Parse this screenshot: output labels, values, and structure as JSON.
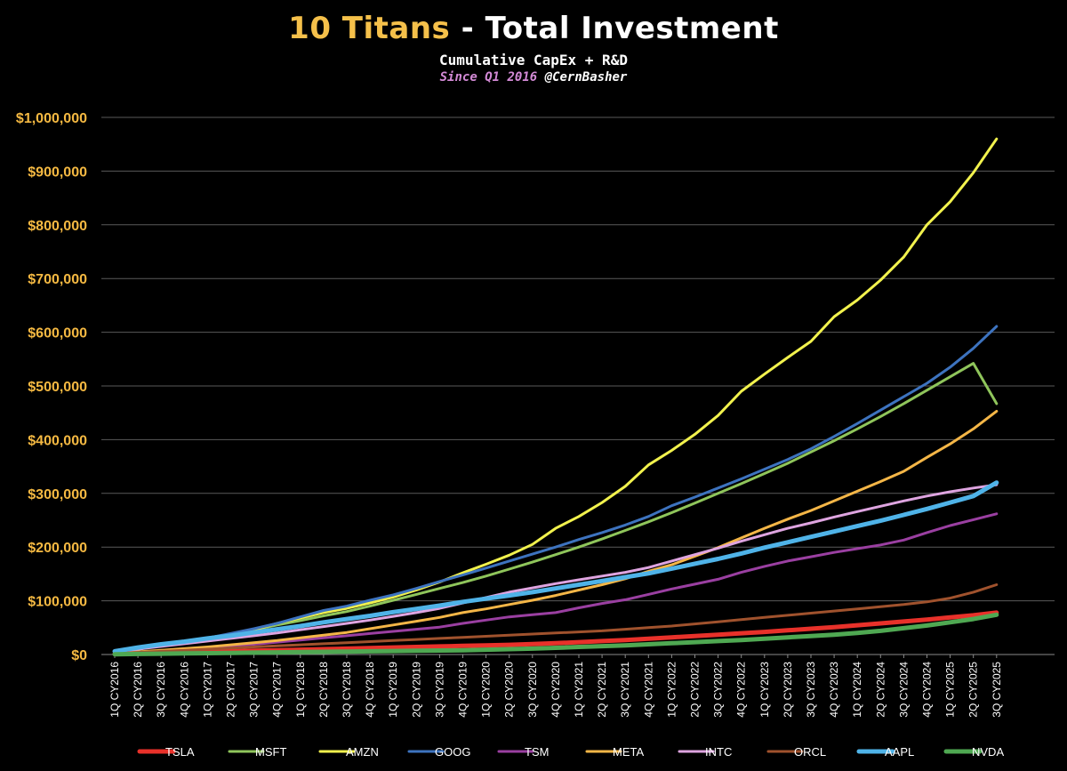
{
  "header": {
    "title_accent": "10 Titans",
    "title_rest": " - Total Investment",
    "subtitle": "Cumulative CapEx + R&D",
    "credit_prefix": "Since Q1 2016 ",
    "credit_handle": "@CernBasher"
  },
  "colors": {
    "background": "#000000",
    "grid": "#5a5a5a",
    "ytick": "#f5b942",
    "title_accent": "#f5c04a",
    "credit": "#d38ad6"
  },
  "chart_data": {
    "type": "line",
    "title": "10 Titans - Total Investment",
    "subtitle": "Cumulative CapEx + R&D",
    "xlabel": "",
    "ylabel": "",
    "ylim": [
      0,
      1000000
    ],
    "grid": true,
    "legend_position": "bottom",
    "y_ticks": [
      "$0",
      "$100,000",
      "$200,000",
      "$300,000",
      "$400,000",
      "$500,000",
      "$600,000",
      "$700,000",
      "$800,000",
      "$900,000",
      "$1,000,000"
    ],
    "categories": [
      "1Q CY2016",
      "2Q CY2016",
      "3Q CY2016",
      "4Q CY2016",
      "1Q CY2017",
      "2Q CY2017",
      "3Q CY2017",
      "4Q CY2017",
      "1Q CY2018",
      "2Q CY2018",
      "3Q CY2018",
      "4Q CY2018",
      "1Q CY2019",
      "2Q CY2019",
      "3Q CY2019",
      "4Q CY2019",
      "1Q CY2020",
      "2Q CY2020",
      "3Q CY2020",
      "4Q CY2020",
      "1Q CY2021",
      "2Q CY2021",
      "3Q CY2021",
      "4Q CY2021",
      "1Q CY2022",
      "2Q CY2022",
      "3Q CY2022",
      "4Q CY2022",
      "1Q CY2023",
      "2Q CY2023",
      "3Q CY2023",
      "4Q CY2023",
      "1Q CY2024",
      "2Q CY2024",
      "3Q CY2024",
      "4Q CY2024",
      "1Q CY2025",
      "2Q CY2025",
      "3Q CY2025"
    ],
    "series": [
      {
        "name": "TSLA",
        "color": "#e8312a",
        "width": 5,
        "values": [
          1000,
          2000,
          3000,
          4000,
          5000,
          6000,
          7000,
          8000,
          9000,
          10000,
          11000,
          12000,
          13000,
          14000,
          15000,
          16000,
          17000,
          18000,
          19500,
          21000,
          23000,
          25000,
          27000,
          29500,
          32000,
          34500,
          37000,
          39500,
          42000,
          45000,
          48000,
          51000,
          54500,
          58000,
          61500,
          65000,
          69000,
          73000,
          78000
        ]
      },
      {
        "name": "MSFT",
        "color": "#8fc55b",
        "width": 3,
        "values": [
          5000,
          10000,
          17000,
          24000,
          31000,
          38000,
          46000,
          55000,
          63000,
          72000,
          80000,
          90000,
          101000,
          112000,
          123000,
          134000,
          146000,
          159000,
          172000,
          186000,
          200000,
          215000,
          231000,
          247000,
          264000,
          282000,
          300000,
          318000,
          337000,
          356000,
          377000,
          398000,
          420000,
          443000,
          467000,
          492000,
          517000,
          542000,
          467000
        ]
      },
      {
        "name": "AMZN",
        "color": "#f2f24d",
        "width": 3,
        "values": [
          5000,
          10000,
          17000,
          24000,
          31000,
          38000,
          46000,
          58000,
          68000,
          78000,
          86000,
          96000,
          107000,
          120000,
          135000,
          152000,
          168000,
          185000,
          205000,
          235000,
          257000,
          283000,
          313000,
          353000,
          380000,
          410000,
          445000,
          490000,
          522000,
          553000,
          583000,
          629000,
          660000,
          697000,
          740000,
          800000,
          843000,
          897000,
          960000
        ]
      },
      {
        "name": "GOOG",
        "color": "#3d73bf",
        "width": 3,
        "values": [
          4000,
          10000,
          17000,
          24000,
          31000,
          39000,
          48000,
          58000,
          70000,
          82000,
          90000,
          101000,
          111000,
          123000,
          136000,
          148000,
          161000,
          174000,
          187000,
          200000,
          214000,
          227000,
          241000,
          257000,
          277000,
          293000,
          310000,
          327000,
          345000,
          363000,
          383000,
          406000,
          430000,
          455000,
          480000,
          505000,
          535000,
          570000,
          611000
        ]
      },
      {
        "name": "TSM",
        "color": "#9a3fa1",
        "width": 3,
        "values": [
          2000,
          4000,
          7000,
          10000,
          13000,
          16000,
          19000,
          23000,
          27000,
          31000,
          35000,
          39000,
          43000,
          47000,
          51000,
          58000,
          64000,
          70000,
          74000,
          78000,
          87000,
          95000,
          102000,
          112000,
          122000,
          131000,
          140000,
          153000,
          164000,
          174000,
          182000,
          190000,
          197000,
          204000,
          213000,
          227000,
          240000,
          251000,
          262000
        ]
      },
      {
        "name": "META",
        "color": "#f4b647",
        "width": 3,
        "values": [
          2000,
          5000,
          8000,
          11000,
          14000,
          18000,
          22000,
          26000,
          31000,
          36000,
          41000,
          48000,
          55000,
          62000,
          69000,
          78000,
          85000,
          93000,
          101000,
          110000,
          120000,
          130000,
          141000,
          155000,
          167000,
          183000,
          199000,
          217000,
          235000,
          252000,
          268000,
          286000,
          304000,
          322000,
          341000,
          367000,
          392000,
          420000,
          453000
        ]
      },
      {
        "name": "INTC",
        "color": "#dea4e0",
        "width": 3,
        "values": [
          5000,
          10000,
          15000,
          20000,
          25000,
          30000,
          35000,
          40000,
          46000,
          52000,
          58000,
          64000,
          71000,
          78000,
          86000,
          96000,
          106000,
          116000,
          124000,
          132000,
          139000,
          146000,
          153000,
          162000,
          174000,
          186000,
          198000,
          211000,
          223000,
          235000,
          245000,
          256000,
          266000,
          276000,
          286000,
          295000,
          303000,
          310000,
          316000
        ]
      },
      {
        "name": "ORCL",
        "color": "#a0522d",
        "width": 3,
        "values": [
          2000,
          4000,
          6000,
          8000,
          10000,
          12000,
          14000,
          16000,
          18000,
          20000,
          22000,
          24000,
          26000,
          28000,
          30000,
          32000,
          34000,
          36000,
          38000,
          40000,
          42000,
          44000,
          47000,
          50000,
          53000,
          57000,
          61000,
          65000,
          69000,
          73000,
          77000,
          81000,
          85000,
          89000,
          93000,
          98000,
          105000,
          116000,
          130000
        ]
      },
      {
        "name": "AAPL",
        "color": "#4fb3e8",
        "width": 5,
        "values": [
          6000,
          13000,
          19000,
          24000,
          30000,
          35000,
          41000,
          47000,
          53000,
          60000,
          66000,
          72000,
          79000,
          85000,
          91000,
          98000,
          104000,
          110000,
          116000,
          123000,
          130000,
          137000,
          144000,
          151000,
          160000,
          169000,
          178000,
          188000,
          199000,
          209000,
          219000,
          229000,
          239000,
          249000,
          260000,
          271000,
          283000,
          295000,
          320000
        ]
      },
      {
        "name": "NVDA",
        "color": "#4fa852",
        "width": 5,
        "values": [
          500,
          1000,
          1500,
          2000,
          2500,
          3000,
          3500,
          4000,
          4500,
          5000,
          5500,
          6000,
          6500,
          7000,
          7500,
          8000,
          9000,
          10000,
          11000,
          12500,
          14000,
          15500,
          17000,
          19000,
          21000,
          23000,
          25000,
          27000,
          29500,
          32000,
          34500,
          37000,
          40000,
          44000,
          49000,
          54000,
          60000,
          66000,
          74000
        ]
      }
    ]
  }
}
